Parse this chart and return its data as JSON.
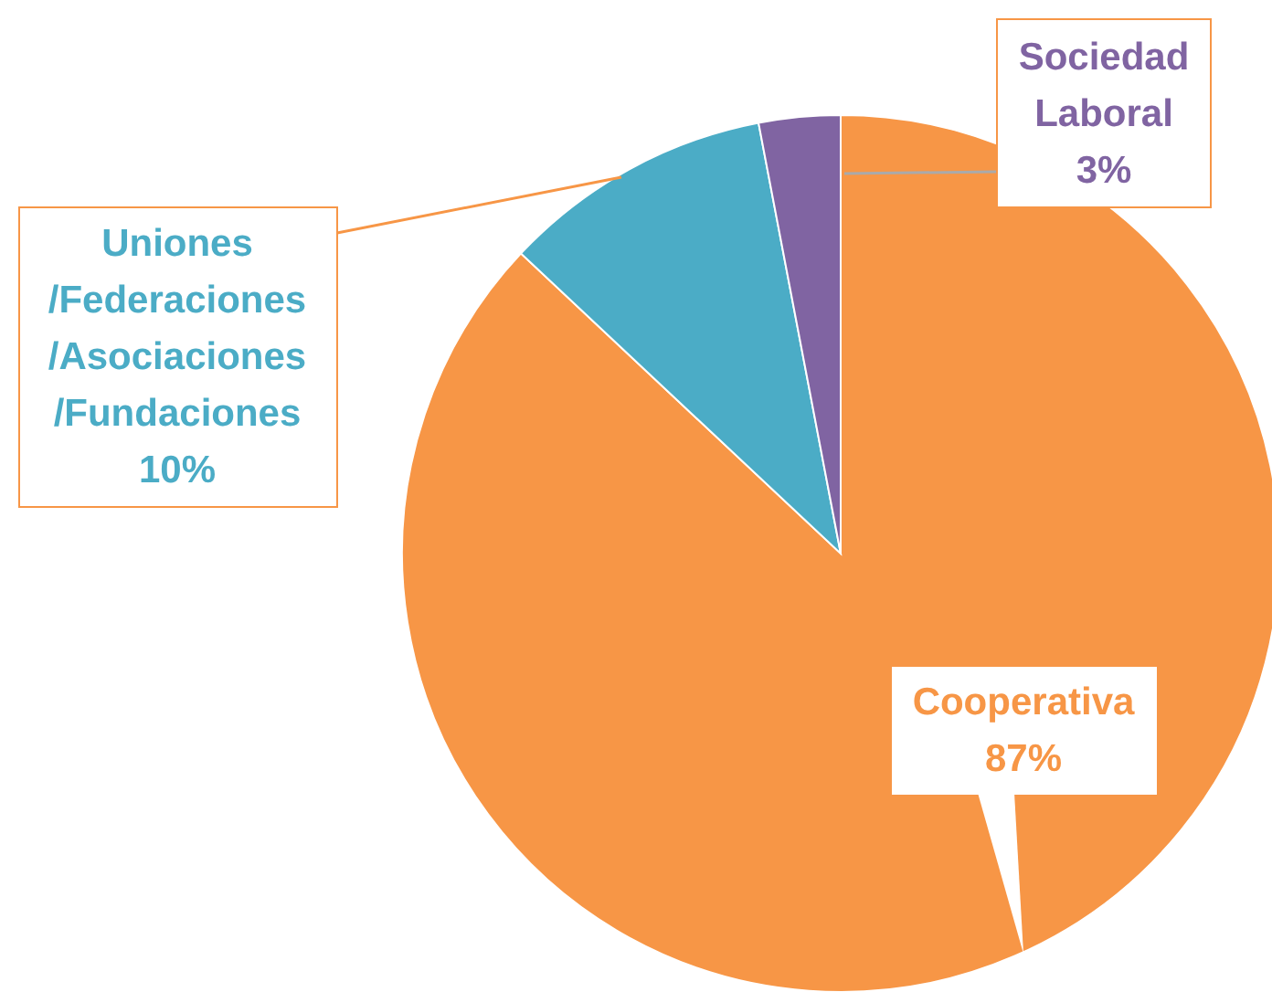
{
  "chart_data": {
    "type": "pie",
    "categories": [
      "Cooperativa",
      "Uniones/Federaciones/Asociaciones/Fundaciones",
      "Sociedad Laboral"
    ],
    "values": [
      87,
      10,
      3
    ],
    "colors": [
      "#f79646",
      "#4bacc6",
      "#8064a2"
    ],
    "value_labels": [
      "87%",
      "10%",
      "3%"
    ]
  }
}
